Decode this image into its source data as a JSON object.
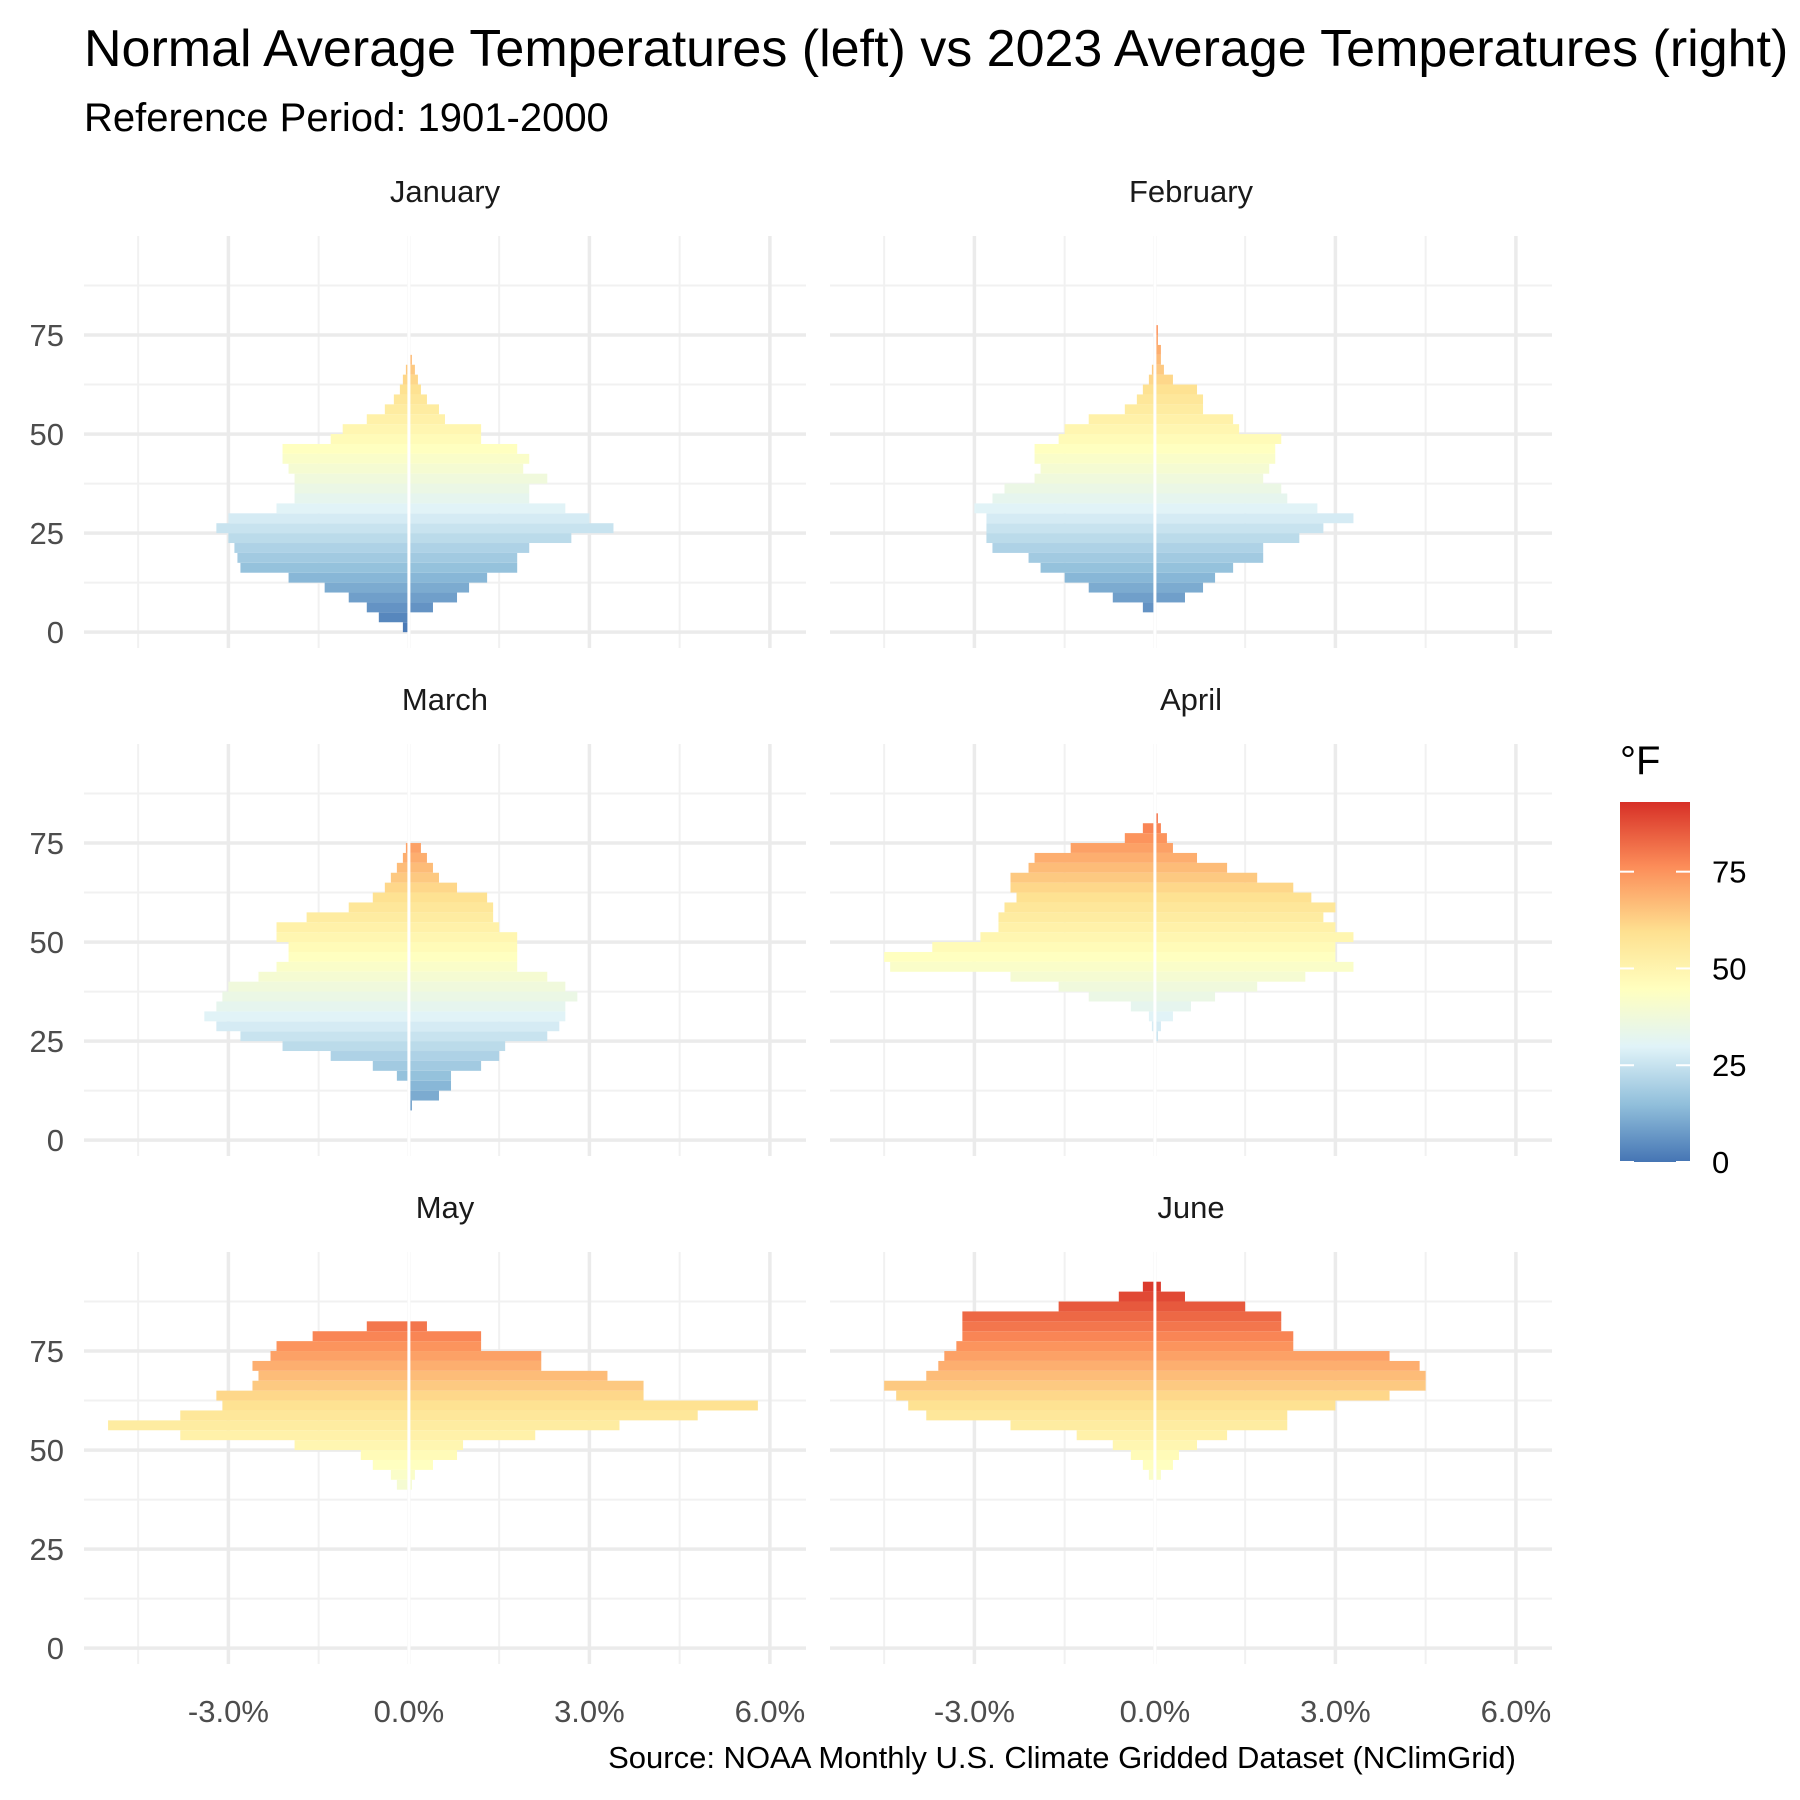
{
  "chart_data": {
    "type": "bar",
    "orientation": "horizontal-pyramid",
    "title": "Normal Average Temperatures (left) vs 2023 Average Temperatures (right)",
    "subtitle": "Reference Period: 1901-2000",
    "caption": "Source: NOAA Monthly U.S. Climate Gridded Dataset (NClimGrid)",
    "x_ticks": [
      "-3.0%",
      "0.0%",
      "3.0%",
      "6.0%"
    ],
    "x_tick_values": [
      -3,
      0,
      3,
      6
    ],
    "y_ticks": [
      "0",
      "25",
      "50",
      "75"
    ],
    "y_tick_values": [
      0,
      25,
      50,
      75
    ],
    "xlim": [
      -5.4,
      6.6
    ],
    "ylim": [
      -4,
      100
    ],
    "bin_width_F": 2.5,
    "legend": {
      "title": "°F",
      "ticks": [
        "0",
        "25",
        "50",
        "75"
      ],
      "tick_values": [
        0,
        25,
        50,
        75
      ],
      "range": [
        0,
        93
      ],
      "colors": [
        "#4575b4",
        "#91bfdb",
        "#e0f3f8",
        "#ffffbf",
        "#fee090",
        "#fc8d59",
        "#d73027"
      ]
    },
    "panels": [
      {
        "name": "January",
        "temps": [
          0,
          2.5,
          5,
          7.5,
          10,
          12.5,
          15,
          17.5,
          20,
          22.5,
          25,
          27.5,
          30,
          32.5,
          35,
          37.5,
          40,
          42.5,
          45,
          47.5,
          50,
          52.5,
          55,
          57.5,
          60,
          62.5,
          65,
          67.5,
          70
        ],
        "normal": [
          0.1,
          0.5,
          0.7,
          1.0,
          1.4,
          2.0,
          2.8,
          2.85,
          2.9,
          3.0,
          3.2,
          3.0,
          2.2,
          1.9,
          1.9,
          1.9,
          2.0,
          2.1,
          2.1,
          1.3,
          1.1,
          0.7,
          0.4,
          0.25,
          0.15,
          0.1,
          0.05,
          0,
          0
        ],
        "y2023": [
          0,
          0,
          0.4,
          0.8,
          1.0,
          1.3,
          1.8,
          1.8,
          2.0,
          2.7,
          3.4,
          3.0,
          2.6,
          2.0,
          2.0,
          2.3,
          1.9,
          2.0,
          1.8,
          1.2,
          1.2,
          0.6,
          0.5,
          0.3,
          0.2,
          0.15,
          0.1,
          0.05,
          0
        ]
      },
      {
        "name": "February",
        "temps": [
          5,
          7.5,
          10,
          12.5,
          15,
          17.5,
          20,
          22.5,
          25,
          27.5,
          30,
          32.5,
          35,
          37.5,
          40,
          42.5,
          45,
          47.5,
          50,
          52.5,
          55,
          57.5,
          60,
          62.5,
          65,
          67.5,
          70,
          72.5,
          75
        ],
        "normal": [
          0.2,
          0.7,
          1.1,
          1.5,
          1.9,
          2.1,
          2.7,
          2.8,
          2.8,
          2.8,
          3.0,
          2.7,
          2.5,
          2.0,
          1.9,
          2.0,
          2.0,
          1.6,
          1.5,
          1.1,
          0.5,
          0.3,
          0.2,
          0.1,
          0.05,
          0,
          0,
          0,
          0
        ],
        "y2023": [
          0,
          0.5,
          0.8,
          1.0,
          1.3,
          1.8,
          1.8,
          2.4,
          2.8,
          3.3,
          2.7,
          2.2,
          2.1,
          1.8,
          1.9,
          2.0,
          2.0,
          2.1,
          1.4,
          1.3,
          0.8,
          0.8,
          0.7,
          0.3,
          0.15,
          0.1,
          0.1,
          0.05,
          0.05
        ]
      },
      {
        "name": "March",
        "temps": [
          7.5,
          10,
          12.5,
          15,
          17.5,
          20,
          22.5,
          25,
          27.5,
          30,
          32.5,
          35,
          37.5,
          40,
          42.5,
          45,
          47.5,
          50,
          52.5,
          55,
          57.5,
          60,
          62.5,
          65,
          67.5,
          70,
          72.5,
          75
        ],
        "normal": [
          0,
          0,
          0,
          0.2,
          0.6,
          1.3,
          2.1,
          2.8,
          3.2,
          3.4,
          3.2,
          3.1,
          3.0,
          2.5,
          2.2,
          2.0,
          2.0,
          2.2,
          2.2,
          1.7,
          1.0,
          0.6,
          0.4,
          0.3,
          0.2,
          0.1,
          0.05,
          0
        ],
        "y2023": [
          0.05,
          0.5,
          0.7,
          0.7,
          1.2,
          1.5,
          1.6,
          2.3,
          2.5,
          2.6,
          2.6,
          2.8,
          2.6,
          2.3,
          1.8,
          1.8,
          1.8,
          1.8,
          1.5,
          1.4,
          1.4,
          1.3,
          0.8,
          0.5,
          0.4,
          0.3,
          0.2,
          0
        ]
      },
      {
        "name": "April",
        "temps": [
          25,
          27.5,
          30,
          32.5,
          35,
          37.5,
          40,
          42.5,
          45,
          47.5,
          50,
          52.5,
          55,
          57.5,
          60,
          62.5,
          65,
          67.5,
          70,
          72.5,
          75,
          77.5,
          80
        ],
        "normal": [
          0,
          0.05,
          0.1,
          0.4,
          1.1,
          1.6,
          2.4,
          4.4,
          4.5,
          3.7,
          2.9,
          2.6,
          2.6,
          2.5,
          2.3,
          2.4,
          2.4,
          2.1,
          2.0,
          1.4,
          0.5,
          0.2,
          0
        ],
        "y2023": [
          0.05,
          0.1,
          0.3,
          0.6,
          1.0,
          1.7,
          2.5,
          3.3,
          3.0,
          3.0,
          3.3,
          3.0,
          2.8,
          3.0,
          2.6,
          2.3,
          1.7,
          1.2,
          0.7,
          0.3,
          0.2,
          0.1,
          0.05
        ]
      },
      {
        "name": "May",
        "temps": [
          40,
          42.5,
          45,
          47.5,
          50,
          52.5,
          55,
          57.5,
          60,
          62.5,
          65,
          67.5,
          70,
          72.5,
          75,
          77.5,
          80
        ],
        "normal": [
          0.2,
          0.3,
          0.6,
          0.8,
          1.9,
          3.8,
          5.0,
          3.8,
          3.1,
          3.2,
          2.6,
          2.5,
          2.6,
          2.3,
          2.2,
          1.6,
          0.7
        ],
        "y2023": [
          0.05,
          0.1,
          0.4,
          0.8,
          0.9,
          2.1,
          3.5,
          4.8,
          5.8,
          3.9,
          3.9,
          3.3,
          2.2,
          2.2,
          1.2,
          1.2,
          0.3
        ]
      },
      {
        "name": "June",
        "temps": [
          42.5,
          45,
          47.5,
          50,
          52.5,
          55,
          57.5,
          60,
          62.5,
          65,
          67.5,
          70,
          72.5,
          75,
          77.5,
          80,
          82.5,
          85,
          87.5,
          90
        ],
        "normal": [
          0.1,
          0.2,
          0.4,
          0.7,
          1.3,
          2.4,
          3.8,
          4.1,
          4.3,
          4.5,
          3.8,
          3.6,
          3.5,
          3.3,
          3.2,
          3.2,
          3.2,
          1.6,
          0.6,
          0.2
        ],
        "y2023": [
          0.1,
          0.3,
          0.4,
          0.7,
          1.2,
          2.2,
          2.2,
          3.0,
          3.9,
          4.5,
          4.5,
          4.4,
          3.9,
          2.3,
          2.3,
          2.1,
          2.1,
          1.5,
          0.5,
          0.1
        ]
      }
    ]
  }
}
